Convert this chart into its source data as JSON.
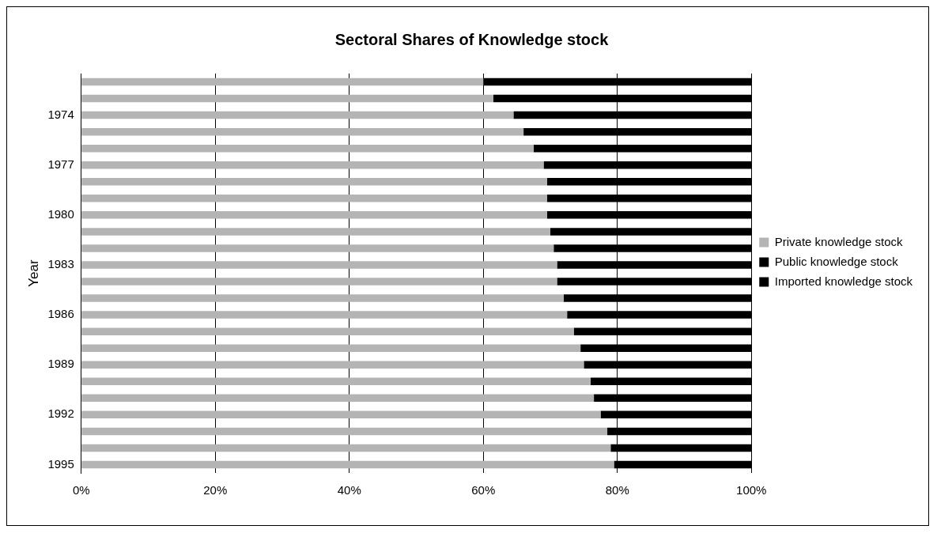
{
  "chart_data": {
    "type": "bar",
    "orientation": "horizontal",
    "stacked": true,
    "title": "Sectoral Shares of Knowledge stock",
    "ylabel": "Year",
    "categories": [
      null,
      null,
      "1974",
      null,
      null,
      "1977",
      null,
      null,
      "1980",
      null,
      null,
      "1983",
      null,
      null,
      "1986",
      null,
      null,
      "1989",
      null,
      null,
      "1992",
      null,
      null,
      "1995"
    ],
    "series": [
      {
        "name": "Private knowledge stock",
        "color": "#b4b4b4",
        "values": [
          60,
          61.5,
          64.5,
          66,
          67.5,
          69,
          69.5,
          69.5,
          69.5,
          70,
          70.5,
          71,
          71,
          72,
          72.5,
          73.5,
          74.5,
          75,
          76,
          76.5,
          77.5,
          78.5,
          79,
          79.5
        ]
      },
      {
        "name": "Public knowledge stock",
        "color": "#000000",
        "values": [
          40,
          38.5,
          35.5,
          34,
          32.5,
          31,
          30.5,
          30.5,
          30.5,
          30,
          29.5,
          29,
          29,
          28,
          27.5,
          26.5,
          25.5,
          25,
          24,
          23.5,
          22.5,
          21.5,
          21,
          20.5
        ]
      },
      {
        "name": "Imported knowledge stock",
        "color": "#000000",
        "values": [
          null,
          null,
          null,
          null,
          null,
          null,
          null,
          null,
          null,
          null,
          null,
          null,
          null,
          null,
          null,
          null,
          null,
          null,
          null,
          null,
          null,
          null,
          null,
          null
        ]
      }
    ],
    "xlim": [
      0,
      100
    ],
    "xticks": [
      {
        "value": 0,
        "label": "0%"
      },
      {
        "value": 20,
        "label": "20%"
      },
      {
        "value": 40,
        "label": "40%"
      },
      {
        "value": 60,
        "label": "60%"
      },
      {
        "value": 80,
        "label": "80%"
      },
      {
        "value": 100,
        "label": "100%"
      }
    ],
    "grid": "x",
    "legend": "right"
  }
}
